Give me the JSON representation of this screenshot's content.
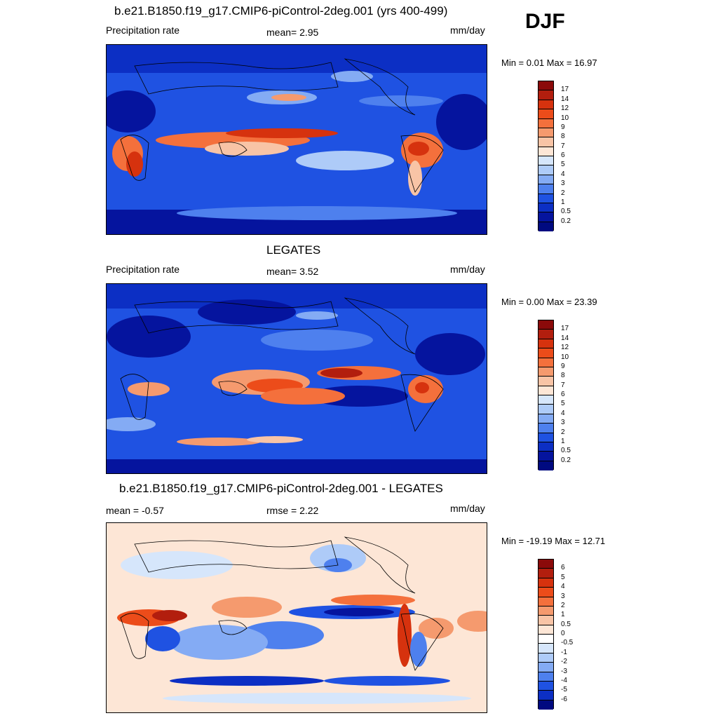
{
  "season": "DJF",
  "panels": [
    {
      "title": "b.e21.B1850.f19_g17.CMIP6-piControl-2deg.001 (yrs 400-499)",
      "left_label": "Precipitation rate",
      "center_label": "mean=   2.95",
      "right_label": "mm/day",
      "minmax": "Min =   0.01 Max =  16.97",
      "palette": "full",
      "colorbar_labels": [
        "17",
        "14",
        "12",
        "10",
        "9",
        "8",
        "7",
        "6",
        "5",
        "4",
        "3",
        "2",
        "1",
        "0.5",
        "0.2"
      ]
    },
    {
      "title": "LEGATES",
      "left_label": "Precipitation rate",
      "center_label": "mean=   3.52",
      "right_label": "mm/day",
      "minmax": "Min =   0.00 Max =  23.39",
      "palette": "full",
      "colorbar_labels": [
        "17",
        "14",
        "12",
        "10",
        "9",
        "8",
        "7",
        "6",
        "5",
        "4",
        "3",
        "2",
        "1",
        "0.5",
        "0.2"
      ]
    },
    {
      "title": "b.e21.B1850.f19_g17.CMIP6-piControl-2deg.001 - LEGATES",
      "left_label": "mean =  -0.57",
      "center_label": "rmse =   2.22",
      "right_label": "mm/day",
      "minmax": "Min = -19.19 Max =  12.71",
      "palette": "diff",
      "colorbar_labels": [
        "6",
        "5",
        "4",
        "3",
        "2",
        "1",
        "0.5",
        "0",
        "-0.5",
        "-1",
        "-2",
        "-3",
        "-4",
        "-5",
        "-6"
      ]
    }
  ],
  "palettes": {
    "full": [
      "#8b0a0a",
      "#b21e0e",
      "#d6320e",
      "#ec4c1a",
      "#f4703c",
      "#f59a6e",
      "#f8c4a6",
      "#fde6d6",
      "#d6e6fb",
      "#aecbf8",
      "#84abf4",
      "#4e80ee",
      "#1f52e2",
      "#0c2fc4",
      "#05149e",
      "#000a80"
    ],
    "diff": [
      "#8b0a0a",
      "#b21e0e",
      "#d6320e",
      "#ec4c1a",
      "#f4703c",
      "#f59a6e",
      "#f8c4a6",
      "#fde6d6",
      "#ffffff",
      "#d6e6fb",
      "#aecbf8",
      "#84abf4",
      "#4e80ee",
      "#1f52e2",
      "#0c2fc4",
      "#000a80"
    ]
  }
}
